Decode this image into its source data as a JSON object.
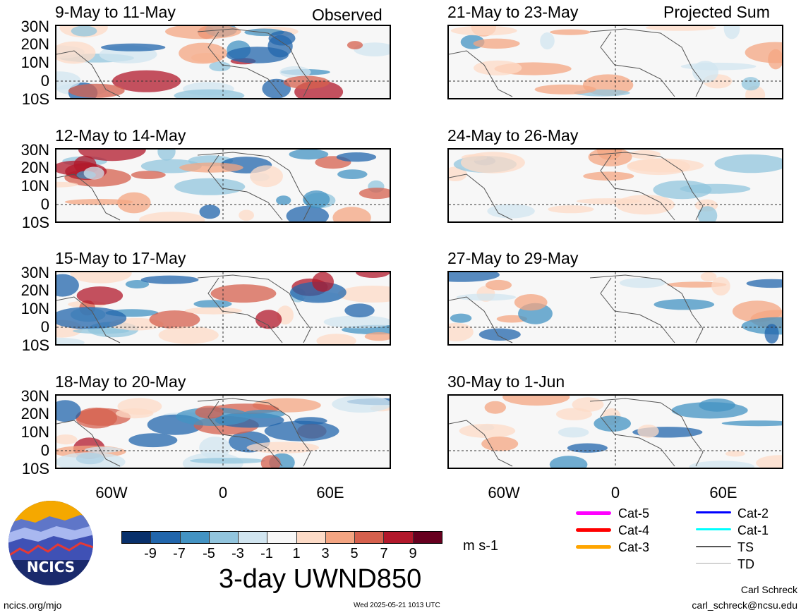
{
  "colors": {
    "cb": [
      "#08306b",
      "#2166ac",
      "#4393c3",
      "#92c5de",
      "#d1e5f0",
      "#f7f7f7",
      "#fddbc7",
      "#f4a582",
      "#d6604d",
      "#b2182b",
      "#67001f"
    ]
  },
  "observed_label": "Observed",
  "projected_label": "Projected Sum",
  "panels_left": [
    {
      "title": "9-May to 11-May"
    },
    {
      "title": "12-May to 14-May"
    },
    {
      "title": "15-May to 17-May"
    },
    {
      "title": "18-May to 20-May"
    }
  ],
  "panels_right": [
    {
      "title": "21-May to 23-May"
    },
    {
      "title": "24-May to 26-May"
    },
    {
      "title": "27-May to 29-May"
    },
    {
      "title": "30-May to 1-Jun"
    }
  ],
  "lat_labels": [
    "30N",
    "20N",
    "10N",
    "0",
    "10S"
  ],
  "lon_labels": [
    "60W",
    "0",
    "60E"
  ],
  "colorbar": {
    "labels": [
      "-9",
      "-7",
      "-5",
      "-3",
      "-1",
      "1",
      "3",
      "5",
      "7",
      "9"
    ],
    "units": "m s-1"
  },
  "main_title": "3-day UWND850",
  "legend": [
    {
      "label": "Cat-5",
      "color": "#ff00ff"
    },
    {
      "label": "Cat-4",
      "color": "#ff0000"
    },
    {
      "label": "Cat-3",
      "color": "#ffa500"
    },
    {
      "label": "Cat-2",
      "color": "#0000ff"
    },
    {
      "label": "Cat-1",
      "color": "#00ffff"
    },
    {
      "label": "TS",
      "color": "#555555"
    },
    {
      "label": "TD",
      "color": "#aaaaaa"
    }
  ],
  "logo_text": "NCICS",
  "footer": {
    "url": "ncics.org/mjo",
    "timestamp": "Wed 2025-05-21 1013 UTC",
    "author": "Carl Schreck",
    "email": "carl_schreck@ncsu.edu"
  }
}
